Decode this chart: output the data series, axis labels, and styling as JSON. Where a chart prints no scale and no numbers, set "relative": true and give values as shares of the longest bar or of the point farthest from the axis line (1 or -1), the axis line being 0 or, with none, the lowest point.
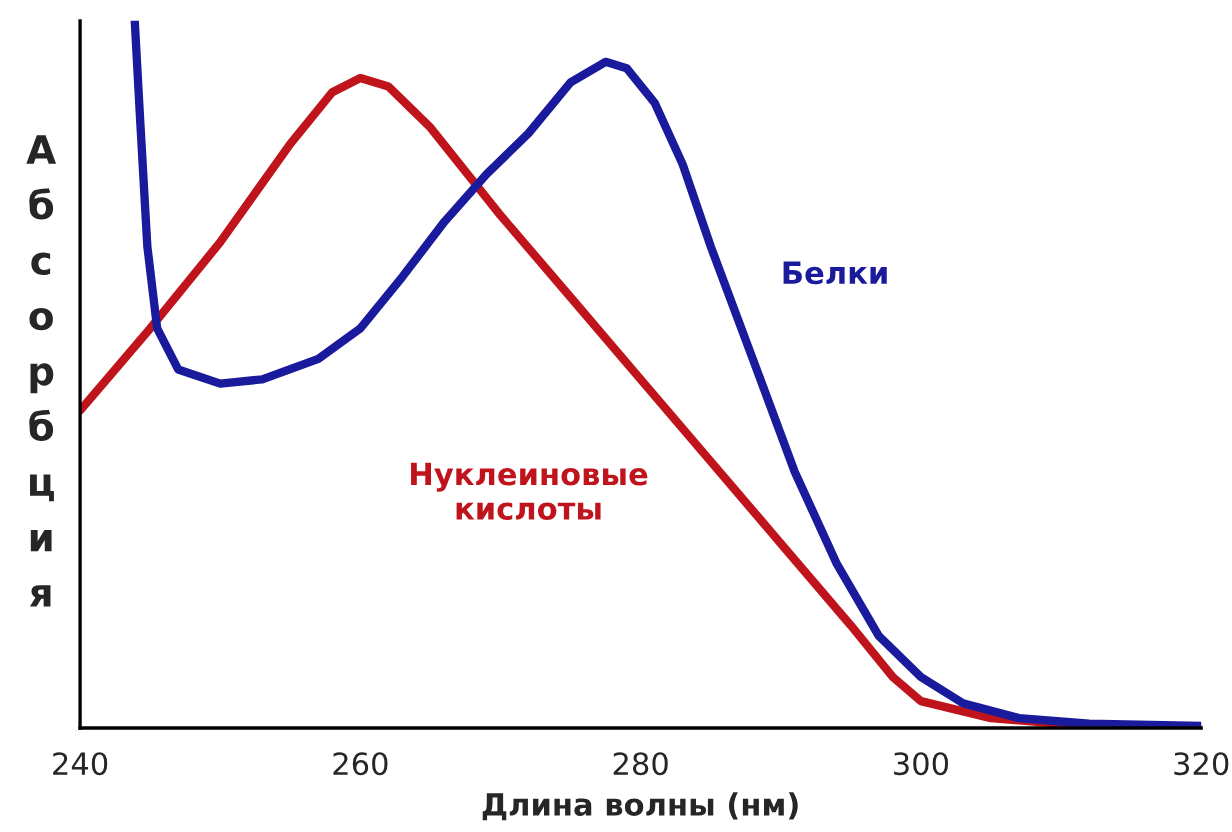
{
  "chart_data": {
    "type": "line",
    "relative": true,
    "xlabel": "Длина волны (нм)",
    "ylabel": "Абсорбция",
    "xlim": [
      240,
      320
    ],
    "xticks": [
      240,
      260,
      280,
      300,
      320
    ],
    "grid": false,
    "legend": false,
    "line_style": "solid",
    "marker": "none",
    "series": [
      {
        "name": "Нуклеиновые\nкислоты",
        "color": "#c0141c",
        "x": [
          240,
          245,
          250,
          255,
          258,
          260,
          262,
          265,
          270,
          275,
          280,
          285,
          290,
          295,
          298,
          300,
          305,
          310,
          320
        ],
        "values": [
          0.449,
          0.565,
          0.687,
          0.826,
          0.899,
          0.919,
          0.907,
          0.849,
          0.725,
          0.609,
          0.493,
          0.377,
          0.261,
          0.145,
          0.072,
          0.038,
          0.014,
          0.006,
          0
        ]
      },
      {
        "name": "Белки",
        "color": "#1a1a9c",
        "x": [
          243.9,
          244.3,
          244.8,
          245.5,
          247,
          250,
          253,
          257,
          260,
          263,
          266,
          269,
          272,
          275,
          277.5,
          279,
          281,
          283,
          285,
          288,
          291,
          294,
          297,
          300,
          303,
          307,
          312,
          320
        ],
        "values": [
          1.0,
          0.855,
          0.681,
          0.565,
          0.507,
          0.487,
          0.493,
          0.522,
          0.565,
          0.638,
          0.716,
          0.783,
          0.841,
          0.913,
          0.942,
          0.933,
          0.884,
          0.797,
          0.681,
          0.522,
          0.362,
          0.232,
          0.13,
          0.072,
          0.035,
          0.014,
          0.006,
          0.003
        ]
      }
    ]
  }
}
